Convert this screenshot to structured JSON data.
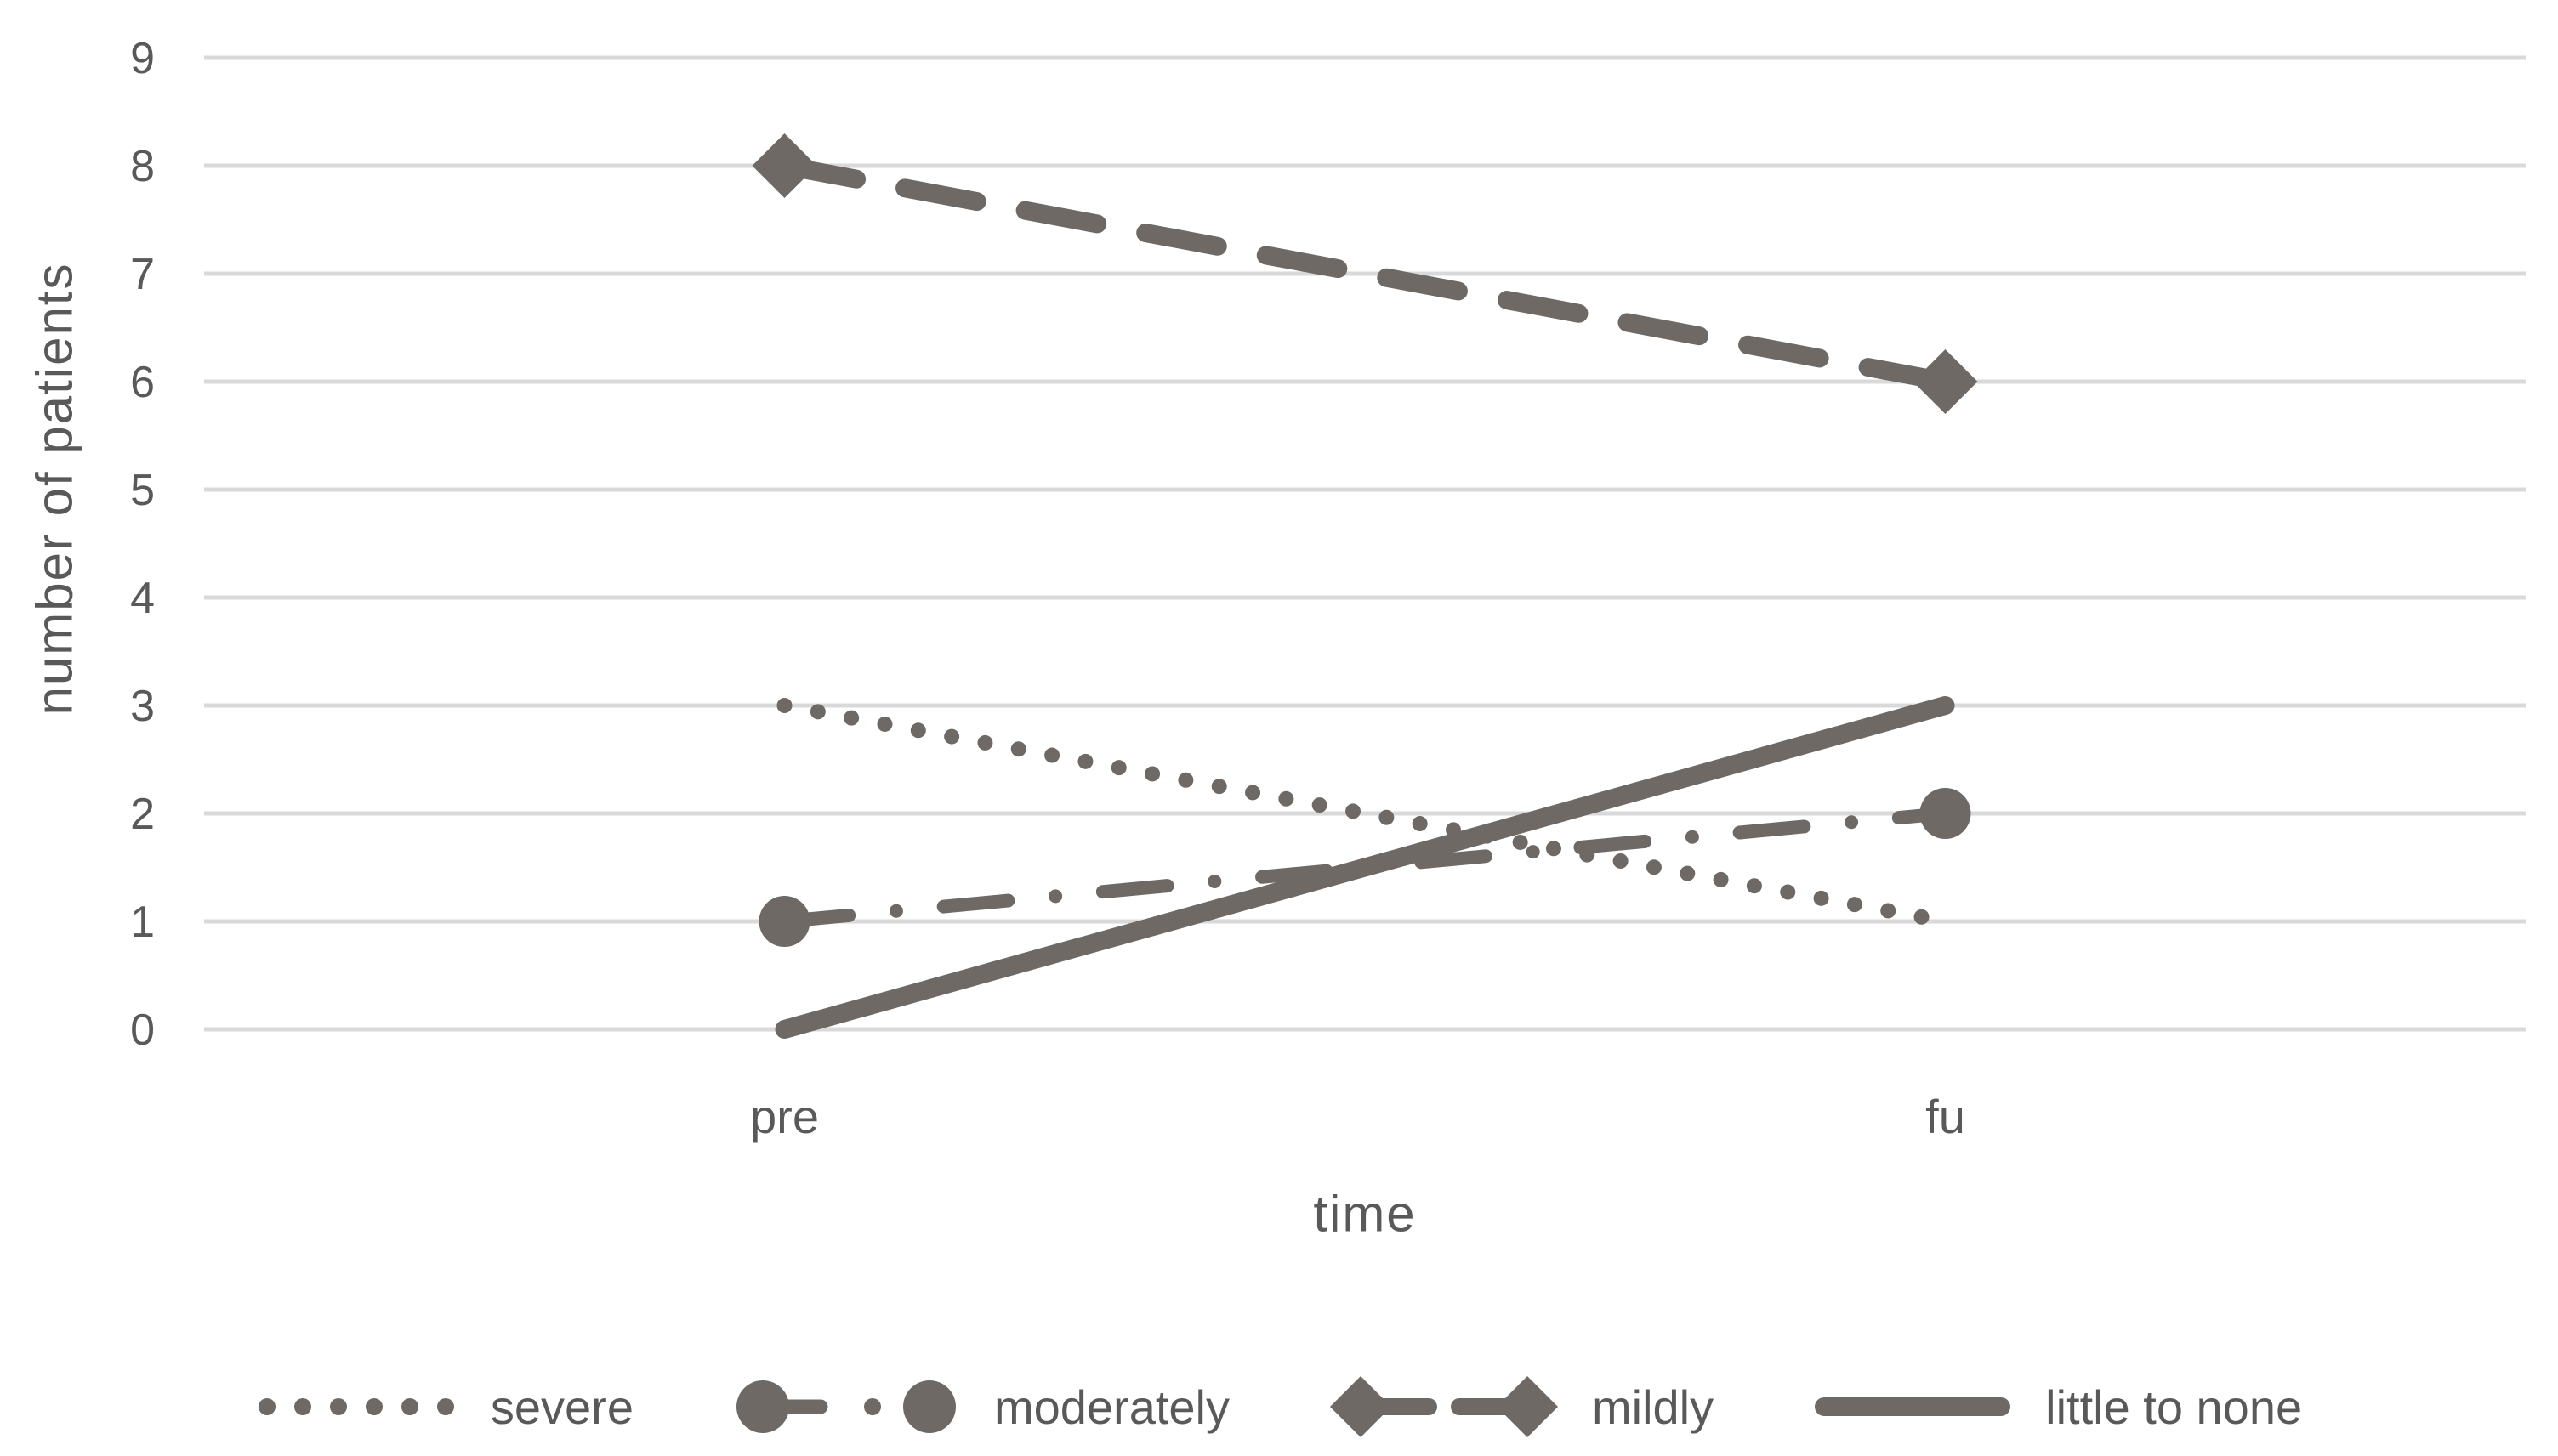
{
  "colors": {
    "series": "#6e6965",
    "gridline": "#d9d9d9",
    "text": "#595959",
    "background": "#ffffff"
  },
  "chart_data": {
    "type": "line",
    "title": "",
    "xlabel": "time",
    "ylabel": "number of patients",
    "categories": [
      "pre",
      "fu"
    ],
    "ylim": [
      0,
      9
    ],
    "yticks": [
      0,
      1,
      2,
      3,
      4,
      5,
      6,
      7,
      8,
      9
    ],
    "grid": "horizontal-only",
    "legend_position": "bottom",
    "series": [
      {
        "name": "severe",
        "values": [
          3,
          1
        ],
        "line_style": "dotted",
        "marker": "none"
      },
      {
        "name": "moderately",
        "values": [
          1,
          2
        ],
        "line_style": "dash-dot",
        "marker": "circle"
      },
      {
        "name": "mildly",
        "values": [
          8,
          6
        ],
        "line_style": "dashed",
        "marker": "diamond"
      },
      {
        "name": "little to none",
        "values": [
          0,
          3
        ],
        "line_style": "solid",
        "marker": "none"
      }
    ]
  }
}
